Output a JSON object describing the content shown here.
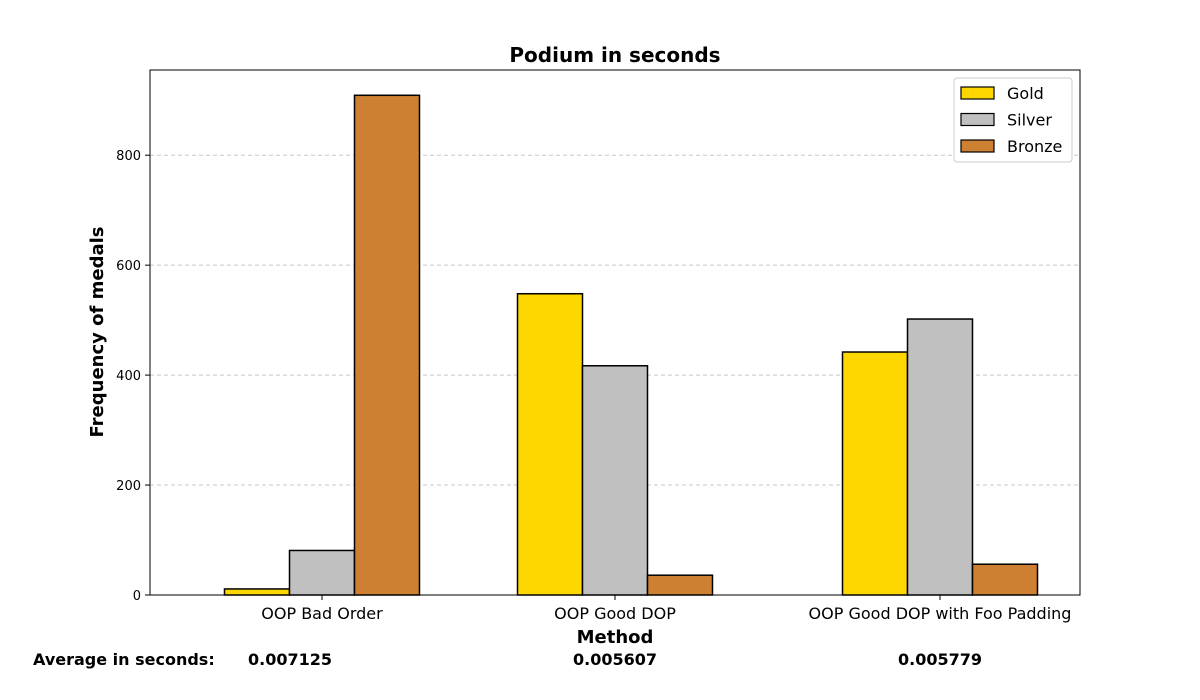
{
  "chart_data": {
    "type": "bar",
    "title": "Podium in seconds",
    "xlabel": "Method",
    "ylabel": "Frequency of medals",
    "categories": [
      "OOP Bad Order",
      "OOP Good DOP",
      "OOP Good DOP with Foo Padding"
    ],
    "series": [
      {
        "name": "Gold",
        "color": "#FFD700",
        "values": [
          11,
          548,
          442
        ]
      },
      {
        "name": "Silver",
        "color": "#C0C0C0",
        "values": [
          81,
          417,
          502
        ]
      },
      {
        "name": "Bronze",
        "color": "#CD7F32",
        "values": [
          909,
          36,
          56
        ]
      }
    ],
    "ylim": [
      0,
      955
    ],
    "yticks": [
      0,
      200,
      400,
      600,
      800
    ],
    "grid": "y-dashed",
    "legend_position": "top-right",
    "averages": {
      "label": "Average in seconds:",
      "values": [
        "0.007125",
        "0.005607",
        "0.005779"
      ]
    }
  }
}
